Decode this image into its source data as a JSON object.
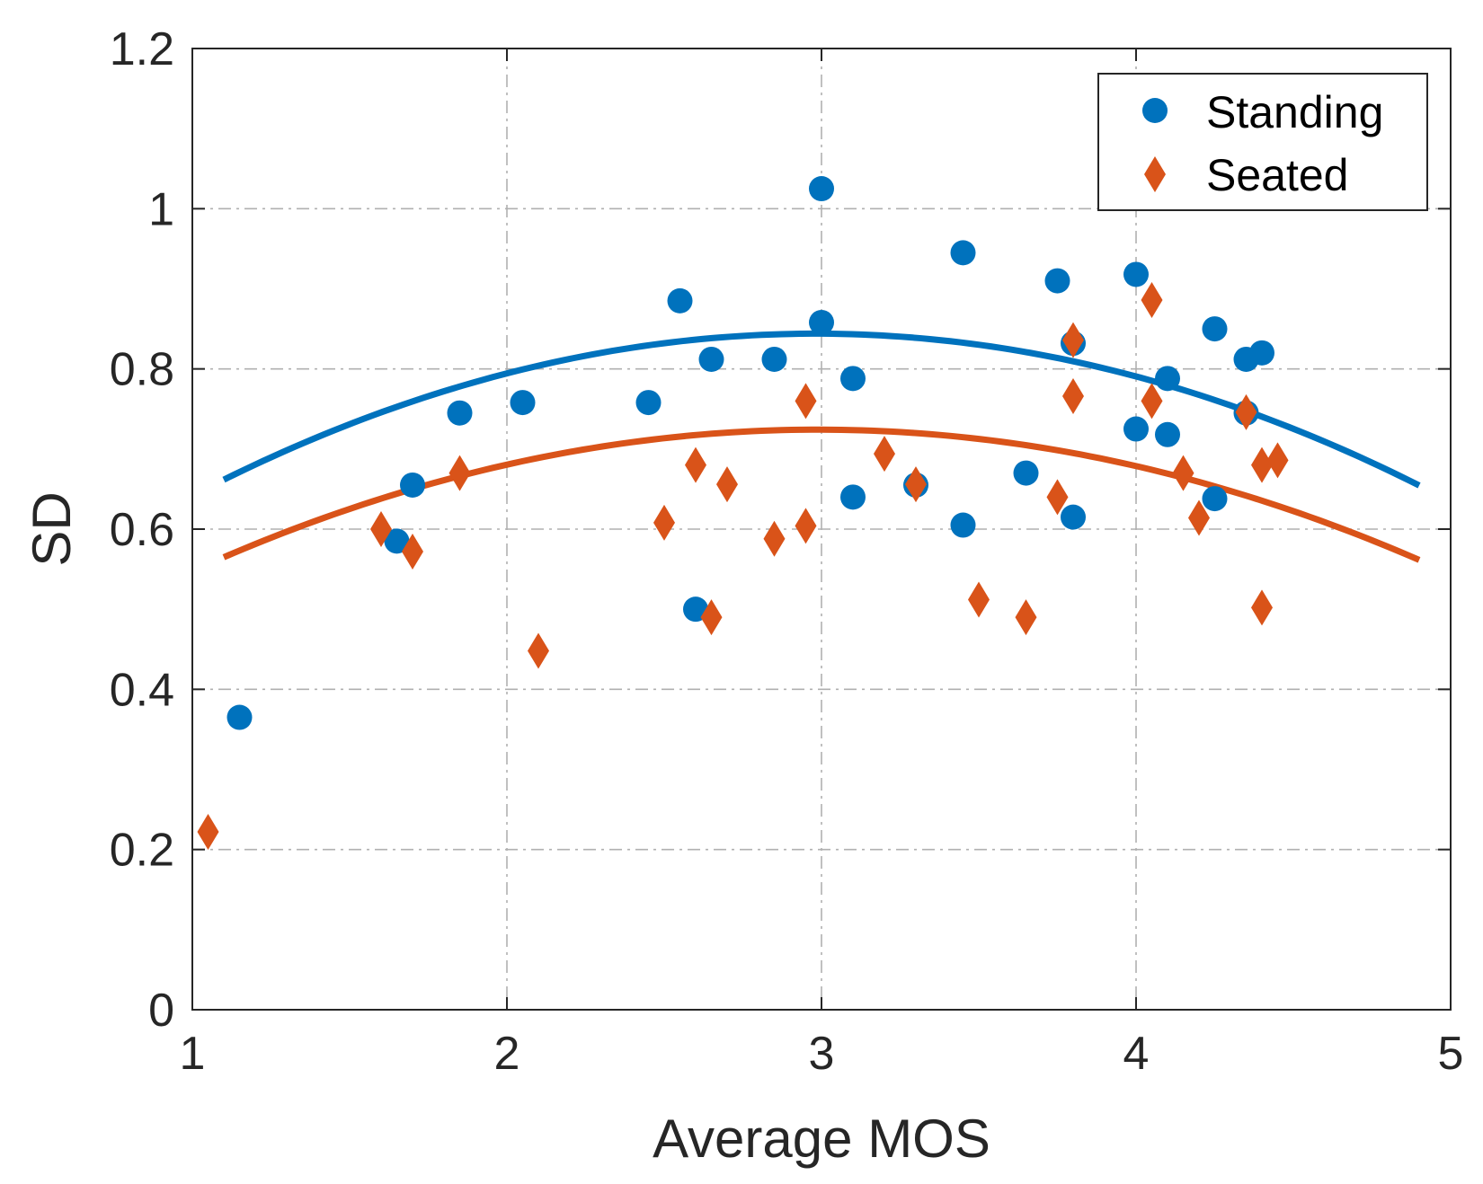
{
  "chart_data": {
    "type": "scatter",
    "xlabel": "Average MOS",
    "ylabel": "SD",
    "xlim": [
      1,
      5
    ],
    "ylim": [
      0,
      1.2
    ],
    "xticks": [
      1,
      2,
      3,
      4,
      5
    ],
    "xtick_labels": [
      "1",
      "2",
      "3",
      "4",
      "5"
    ],
    "yticks": [
      0,
      0.2,
      0.4,
      0.6,
      0.8,
      1.0,
      1.2
    ],
    "ytick_labels": [
      "0",
      "0.2",
      "0.4",
      "0.6",
      "0.8",
      "1",
      "1.2"
    ],
    "grid": true,
    "legend_position": "top-right",
    "series": [
      {
        "name": "Standing",
        "marker": "circle",
        "color": "#0072BD",
        "points": [
          [
            1.15,
            0.365
          ],
          [
            1.65,
            0.585
          ],
          [
            1.7,
            0.655
          ],
          [
            1.85,
            0.745
          ],
          [
            2.05,
            0.758
          ],
          [
            2.45,
            0.758
          ],
          [
            2.55,
            0.885
          ],
          [
            2.6,
            0.5
          ],
          [
            2.65,
            0.812
          ],
          [
            2.85,
            0.812
          ],
          [
            3.0,
            1.025
          ],
          [
            3.0,
            0.858
          ],
          [
            3.1,
            0.788
          ],
          [
            3.1,
            0.64
          ],
          [
            3.3,
            0.655
          ],
          [
            3.45,
            0.945
          ],
          [
            3.45,
            0.605
          ],
          [
            3.65,
            0.67
          ],
          [
            3.75,
            0.91
          ],
          [
            3.8,
            0.832
          ],
          [
            3.8,
            0.615
          ],
          [
            4.0,
            0.918
          ],
          [
            4.0,
            0.725
          ],
          [
            4.1,
            0.788
          ],
          [
            4.1,
            0.718
          ],
          [
            4.25,
            0.85
          ],
          [
            4.25,
            0.638
          ],
          [
            4.35,
            0.812
          ],
          [
            4.35,
            0.745
          ],
          [
            4.4,
            0.82
          ]
        ],
        "fit": {
          "type": "quadratic-in-mos",
          "coefficients": [
            -0.0515,
            0.3071,
            0.3862
          ],
          "x_range": [
            1.1,
            4.9
          ]
        }
      },
      {
        "name": "Seated",
        "marker": "diamond",
        "color": "#D95319",
        "points": [
          [
            1.05,
            0.222
          ],
          [
            1.6,
            0.6
          ],
          [
            1.7,
            0.572
          ],
          [
            1.85,
            0.67
          ],
          [
            2.1,
            0.448
          ],
          [
            2.5,
            0.608
          ],
          [
            2.6,
            0.68
          ],
          [
            2.65,
            0.49
          ],
          [
            2.7,
            0.656
          ],
          [
            2.85,
            0.588
          ],
          [
            2.95,
            0.76
          ],
          [
            2.95,
            0.604
          ],
          [
            3.2,
            0.694
          ],
          [
            3.3,
            0.656
          ],
          [
            3.5,
            0.512
          ],
          [
            3.65,
            0.49
          ],
          [
            3.75,
            0.64
          ],
          [
            3.8,
            0.836
          ],
          [
            3.8,
            0.766
          ],
          [
            4.05,
            0.886
          ],
          [
            4.05,
            0.76
          ],
          [
            4.15,
            0.67
          ],
          [
            4.2,
            0.614
          ],
          [
            4.35,
            0.746
          ],
          [
            4.4,
            0.68
          ],
          [
            4.4,
            0.502
          ],
          [
            4.45,
            0.686
          ]
        ],
        "fit": {
          "type": "quadratic-in-mos",
          "coefficients": [
            -0.0446,
            0.2667,
            0.3255
          ],
          "x_range": [
            1.1,
            4.9
          ]
        }
      }
    ]
  }
}
